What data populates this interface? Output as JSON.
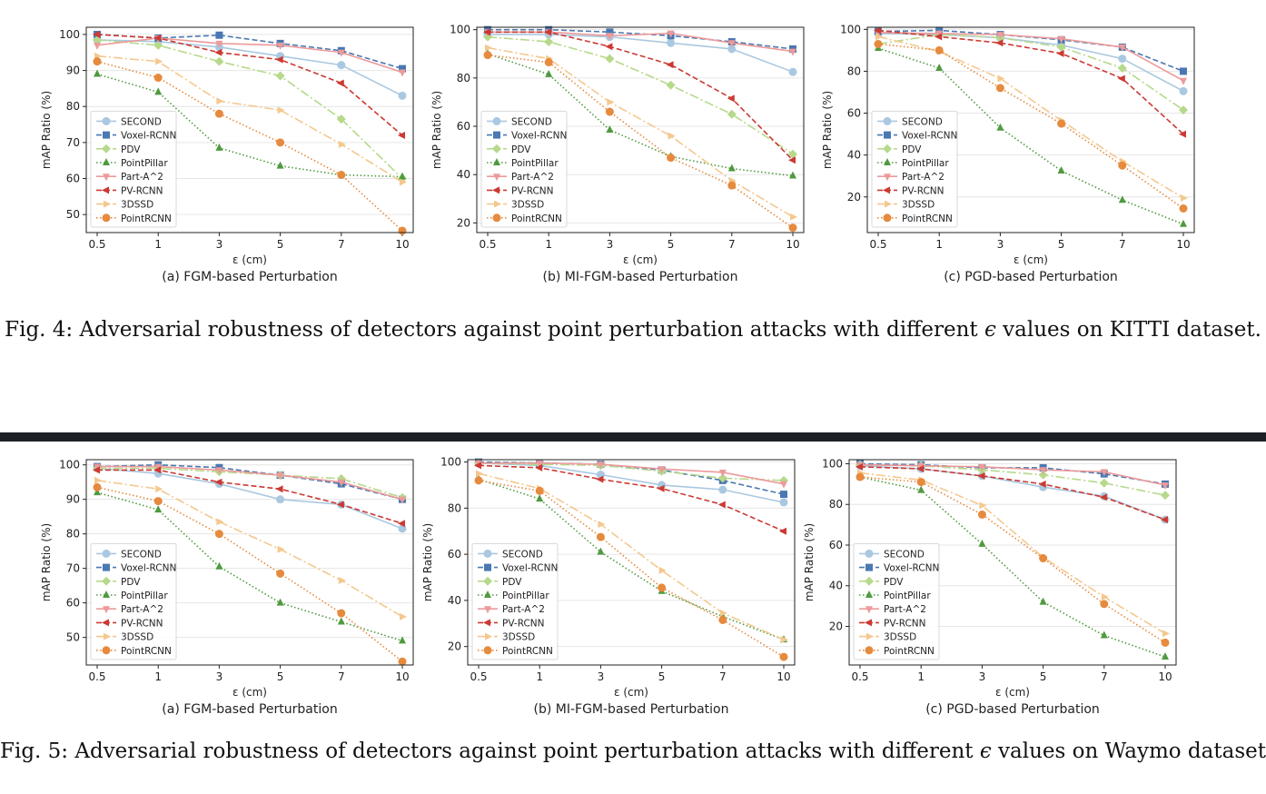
{
  "series_styles": [
    {
      "name": "SECOND",
      "color": "#aac8e0",
      "dash": "",
      "marker": "circle"
    },
    {
      "name": "Voxel-RCNN",
      "color": "#4a78b2",
      "dash": "6,3",
      "marker": "square"
    },
    {
      "name": "PDV",
      "color": "#b6d98a",
      "dash": "10,3,2,3",
      "marker": "diamond"
    },
    {
      "name": "PointPillar",
      "color": "#4f9a3f",
      "dash": "1.5,2.5",
      "marker": "triangle-up"
    },
    {
      "name": "Part-A^2",
      "color": "#ec9a9a",
      "dash": "",
      "marker": "triangle-down"
    },
    {
      "name": "PV-RCNN",
      "color": "#cc3a33",
      "dash": "6,3",
      "marker": "triangle-left"
    },
    {
      "name": "3DSSD",
      "color": "#f4c88e",
      "dash": "10,3,2,3",
      "marker": "triangle-right"
    },
    {
      "name": "PointRCNN",
      "color": "#e68a3e",
      "dash": "1.5,2.5",
      "marker": "circle"
    }
  ],
  "figures": [
    {
      "caption_prefix": "Fig. 4: Adversarial robustness of detectors against point perturbation attacks with different ",
      "caption_symbol": "ϵ",
      "caption_suffix": " values on KITTI dataset.",
      "charts": [
        {
          "type": "line",
          "subcaption": "(a) FGM-based Perturbation",
          "xlabel": "ε (cm)",
          "ylabel": "mAP Ratio (%)",
          "categories": [
            "0.5",
            "1",
            "3",
            "5",
            "7",
            "10"
          ],
          "ylim": [
            45,
            102
          ],
          "yticks": [
            50,
            60,
            70,
            80,
            90,
            100
          ],
          "grid": "horizontal",
          "legend": "lower-left",
          "series": [
            {
              "name": "SECOND",
              "values": [
                98.5,
                98,
                96.5,
                94,
                91.5,
                83
              ]
            },
            {
              "name": "Voxel-RCNN",
              "values": [
                100,
                99,
                99.8,
                97.5,
                95.5,
                90.5
              ]
            },
            {
              "name": "PDV",
              "values": [
                98.5,
                97,
                92.5,
                88.5,
                76.5,
                60
              ]
            },
            {
              "name": "PointPillar",
              "values": [
                89,
                84,
                68.5,
                63.5,
                61,
                60.5
              ]
            },
            {
              "name": "Part-A^2",
              "values": [
                97,
                99,
                97.5,
                97,
                95,
                89.5
              ]
            },
            {
              "name": "PV-RCNN",
              "values": [
                100,
                99,
                95,
                93,
                86.5,
                72
              ]
            },
            {
              "name": "3DSSD",
              "values": [
                94,
                92.5,
                81.5,
                79,
                69.5,
                59
              ]
            },
            {
              "name": "PointRCNN",
              "values": [
                92.5,
                88,
                78,
                70,
                61,
                45.5
              ]
            }
          ]
        },
        {
          "type": "line",
          "subcaption": "(b) MI-FGM-based Perturbation",
          "xlabel": "ε (cm)",
          "ylabel": "mAP Ratio (%)",
          "categories": [
            "0.5",
            "1",
            "3",
            "5",
            "7",
            "10"
          ],
          "ylim": [
            16,
            101
          ],
          "yticks": [
            20,
            40,
            60,
            80,
            100
          ],
          "grid": "horizontal",
          "legend": "lower-left",
          "series": [
            {
              "name": "SECOND",
              "values": [
                98,
                98,
                97,
                94.5,
                92,
                82.5
              ]
            },
            {
              "name": "Voxel-RCNN",
              "values": [
                100,
                100,
                99,
                97.5,
                95,
                92
              ]
            },
            {
              "name": "PDV",
              "values": [
                97,
                95,
                88,
                77,
                65,
                48.5
              ]
            },
            {
              "name": "PointPillar",
              "values": [
                90,
                81.5,
                58.5,
                47.5,
                42.5,
                39.5
              ]
            },
            {
              "name": "Part-A^2",
              "values": [
                99,
                99,
                97.5,
                98.5,
                94.5,
                91
              ]
            },
            {
              "name": "PV-RCNN",
              "values": [
                99,
                99,
                93,
                85.5,
                71.5,
                46
              ]
            },
            {
              "name": "3DSSD",
              "values": [
                92.5,
                88,
                70,
                56,
                37.5,
                22.5
              ]
            },
            {
              "name": "PointRCNN",
              "values": [
                89.5,
                86.5,
                66,
                47,
                35.5,
                18
              ]
            }
          ]
        },
        {
          "type": "line",
          "subcaption": "(c) PGD-based Perturbation",
          "xlabel": "ε (cm)",
          "ylabel": "mAP Ratio (%)",
          "categories": [
            "0.5",
            "1",
            "3",
            "5",
            "7",
            "10"
          ],
          "ylim": [
            3,
            101
          ],
          "yticks": [
            20,
            40,
            60,
            80,
            100
          ],
          "grid": "horizontal",
          "legend": "lower-left",
          "series": [
            {
              "name": "SECOND",
              "values": [
                98,
                97.5,
                96,
                92.5,
                86,
                70.5
              ]
            },
            {
              "name": "Voxel-RCNN",
              "values": [
                99,
                99.5,
                97.5,
                95,
                91.5,
                80
              ]
            },
            {
              "name": "PDV",
              "values": [
                93,
                97.5,
                96,
                91.5,
                81.5,
                61.5
              ]
            },
            {
              "name": "PointPillar",
              "values": [
                91,
                81.5,
                53,
                32.5,
                18.5,
                7
              ]
            },
            {
              "name": "Part-A^2",
              "values": [
                98.5,
                98,
                97.5,
                95.5,
                91.5,
                75.5
              ]
            },
            {
              "name": "PV-RCNN",
              "values": [
                99.5,
                96.5,
                93.5,
                88.5,
                76.5,
                50
              ]
            },
            {
              "name": "3DSSD",
              "values": [
                96.5,
                89.5,
                76.5,
                56.5,
                37,
                19.5
              ]
            },
            {
              "name": "PointRCNN",
              "values": [
                93,
                90,
                72,
                55,
                35,
                14.5
              ]
            }
          ]
        }
      ]
    },
    {
      "caption_prefix": "Fig. 5: Adversarial robustness of detectors against point perturbation attacks with different ",
      "caption_symbol": "ϵ",
      "caption_suffix": " values on Waymo dataset.",
      "charts": [
        {
          "type": "line",
          "subcaption": "(a) FGM-based Perturbation",
          "xlabel": "ε (cm)",
          "ylabel": "mAP Ratio (%)",
          "categories": [
            "0.5",
            "1",
            "3",
            "5",
            "7",
            "10"
          ],
          "ylim": [
            42,
            101.5
          ],
          "yticks": [
            50,
            60,
            70,
            80,
            90,
            100
          ],
          "grid": "horizontal",
          "legend": "lower-left",
          "series": [
            {
              "name": "SECOND",
              "values": [
                99,
                97.5,
                94.5,
                90,
                88.5,
                81.5
              ]
            },
            {
              "name": "Voxel-RCNN",
              "values": [
                99.5,
                100,
                99.2,
                97,
                94.5,
                90
              ]
            },
            {
              "name": "PDV",
              "values": [
                99,
                99,
                98,
                97,
                96,
                90.5
              ]
            },
            {
              "name": "PointPillar",
              "values": [
                92,
                87,
                70.5,
                60,
                54.5,
                49
              ]
            },
            {
              "name": "Part-A^2",
              "values": [
                99.5,
                99.5,
                98.5,
                97,
                95,
                90
              ]
            },
            {
              "name": "PV-RCNN",
              "values": [
                98.5,
                98.5,
                95,
                93,
                88.5,
                83
              ]
            },
            {
              "name": "3DSSD",
              "values": [
                95.5,
                93,
                83.5,
                75.5,
                66.5,
                56
              ]
            },
            {
              "name": "PointRCNN",
              "values": [
                93.5,
                89.5,
                80,
                68.5,
                57,
                43
              ]
            }
          ]
        },
        {
          "type": "line",
          "subcaption": "(b) MI-FGM-based Perturbation",
          "xlabel": "ε (cm)",
          "ylabel": "mAP Ratio (%)",
          "categories": [
            "0.5",
            "1",
            "3",
            "5",
            "7",
            "10"
          ],
          "ylim": [
            12,
            101
          ],
          "yticks": [
            20,
            40,
            60,
            80,
            100
          ],
          "grid": "horizontal",
          "legend": "lower-left",
          "series": [
            {
              "name": "SECOND",
              "values": [
                99.5,
                98.5,
                94.5,
                90,
                88,
                82.5
              ]
            },
            {
              "name": "Voxel-RCNN",
              "values": [
                100,
                99.5,
                99,
                96.5,
                92,
                86
              ]
            },
            {
              "name": "PDV",
              "values": [
                99.5,
                99,
                98.5,
                96,
                93,
                92
              ]
            },
            {
              "name": "PointPillar",
              "values": [
                92.5,
                84,
                61,
                44,
                33,
                23
              ]
            },
            {
              "name": "Part-A^2",
              "values": [
                99.5,
                99.5,
                99,
                97,
                95.5,
                90.5
              ]
            },
            {
              "name": "PV-RCNN",
              "values": [
                98.5,
                97.5,
                92.5,
                88.5,
                81.5,
                70
              ]
            },
            {
              "name": "3DSSD",
              "values": [
                95,
                88.5,
                73,
                53,
                34.5,
                23
              ]
            },
            {
              "name": "PointRCNN",
              "values": [
                92,
                87.5,
                67.5,
                45.5,
                31.5,
                15.5
              ]
            }
          ]
        },
        {
          "type": "line",
          "subcaption": "(c) PGD-based Perturbation",
          "xlabel": "ε (cm)",
          "ylabel": "mAP Ratio (%)",
          "categories": [
            "0.5",
            "1",
            "3",
            "5",
            "7",
            "10"
          ],
          "ylim": [
            1,
            102
          ],
          "yticks": [
            20,
            40,
            60,
            80,
            100
          ],
          "grid": "horizontal",
          "legend": "lower-left",
          "series": [
            {
              "name": "SECOND",
              "values": [
                99,
                97.5,
                94,
                88.5,
                84,
                72.5
              ]
            },
            {
              "name": "Voxel-RCNN",
              "values": [
                100,
                99.5,
                98,
                98,
                95,
                90
              ]
            },
            {
              "name": "PDV",
              "values": [
                99.5,
                99,
                97,
                94.5,
                90.5,
                84.5
              ]
            },
            {
              "name": "PointPillar",
              "values": [
                93.5,
                87,
                60.5,
                32,
                15.5,
                5
              ]
            },
            {
              "name": "Part-A^2",
              "values": [
                99.5,
                99,
                98.5,
                97,
                96,
                89.5
              ]
            },
            {
              "name": "PV-RCNN",
              "values": [
                98.5,
                97.5,
                94,
                90,
                83.5,
                72.5
              ]
            },
            {
              "name": "3DSSD",
              "values": [
                95.5,
                92,
                79.5,
                54,
                34.5,
                16.5
              ]
            },
            {
              "name": "PointRCNN",
              "values": [
                93.5,
                91,
                75,
                53.5,
                31,
                12
              ]
            }
          ]
        }
      ]
    }
  ]
}
